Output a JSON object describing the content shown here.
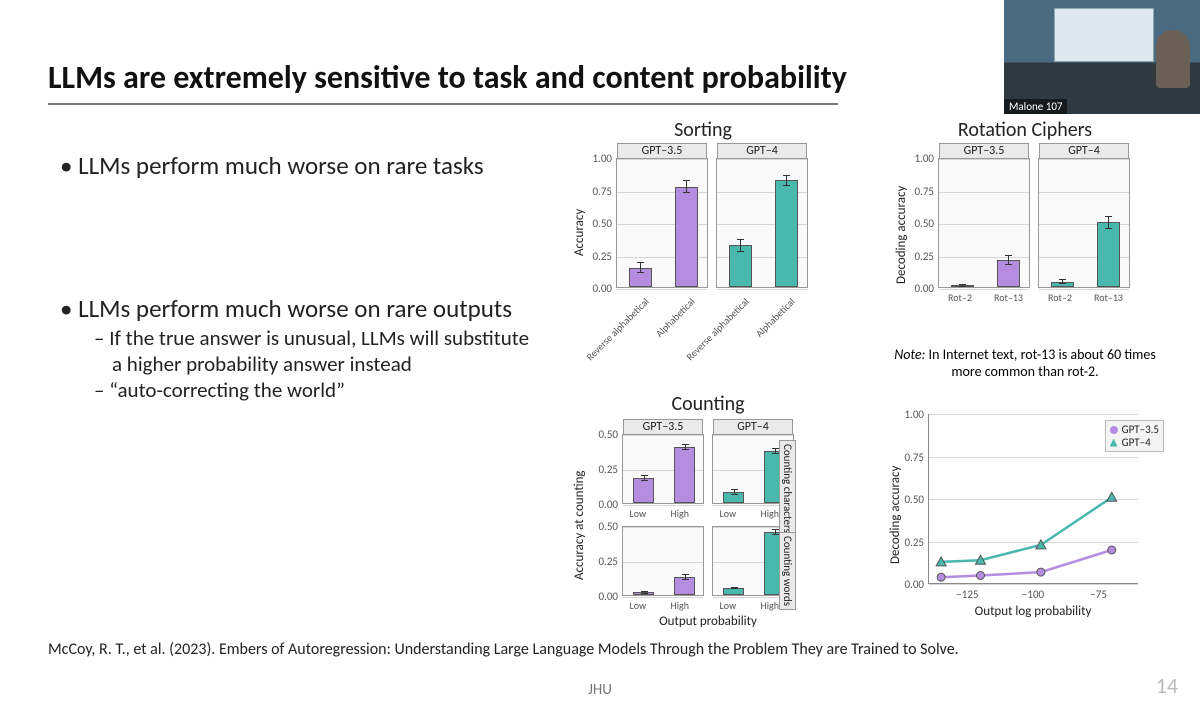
{
  "title": "LLMs are extremely sensitive to task and content probability",
  "bullets": {
    "b1a": "LLMs perform much worse on rare tasks",
    "b1b": "LLMs perform much worse on rare outputs",
    "b2a": "If the true answer is unusual, LLMs will substitute a higher probability answer instead",
    "b2b": "“auto-correcting the world”"
  },
  "citation": "McCoy, R. T., et al. (2023). Embers of Autoregression: Understanding Large Language Models Through the Problem They are Trained to Solve.",
  "footer_center": "JHU",
  "page_number": "14",
  "video_label": "Malone 107",
  "colors": {
    "purple": "#b48de0",
    "teal": "#49b8ad",
    "grid": "#d6d6d6",
    "axis": "#888888",
    "panel_bg": "#fafafa"
  },
  "sorting": {
    "title": "Sorting",
    "ylabel": "Accuracy",
    "ylim": [
      0,
      1
    ],
    "yticks": [
      0.0,
      0.25,
      0.5,
      0.75,
      1.0
    ],
    "panels": [
      {
        "label": "GPT–3.5",
        "color": "#b48de0",
        "bars": [
          {
            "cat": "Reverse alphabetical",
            "val": 0.15,
            "err": 0.04
          },
          {
            "cat": "Alphabetical",
            "val": 0.77,
            "err": 0.05
          }
        ]
      },
      {
        "label": "GPT–4",
        "color": "#49b8ad",
        "bars": [
          {
            "cat": "Reverse alphabetical",
            "val": 0.32,
            "err": 0.05
          },
          {
            "cat": "Alphabetical",
            "val": 0.82,
            "err": 0.04
          }
        ]
      }
    ]
  },
  "rotation": {
    "title": "Rotation Ciphers",
    "ylabel": "Decoding accuracy",
    "ylim": [
      0,
      1
    ],
    "yticks": [
      0.0,
      0.25,
      0.5,
      0.75,
      1.0
    ],
    "panels": [
      {
        "label": "GPT–3.5",
        "color": "#b48de0",
        "bars": [
          {
            "cat": "Rot–2",
            "val": 0.01,
            "err": 0.01
          },
          {
            "cat": "Rot–13",
            "val": 0.21,
            "err": 0.04
          }
        ]
      },
      {
        "label": "GPT–4",
        "color": "#49b8ad",
        "bars": [
          {
            "cat": "Rot–2",
            "val": 0.04,
            "err": 0.02
          },
          {
            "cat": "Rot–13",
            "val": 0.5,
            "err": 0.05
          }
        ]
      }
    ],
    "note_prefix": "Note:",
    "note": " In Internet text, rot-13 is about 60 times more common than rot-2."
  },
  "counting": {
    "title": "Counting",
    "ylabel": "Accuracy at counting",
    "xlabel": "Output probability",
    "ylim": [
      0,
      0.5
    ],
    "yticks": [
      0.0,
      0.25,
      0.5
    ],
    "cols": [
      {
        "label": "GPT–3.5",
        "color": "#b48de0"
      },
      {
        "label": "GPT–4",
        "color": "#49b8ad"
      }
    ],
    "rows": [
      {
        "label": "Counting characters"
      },
      {
        "label": "Counting words"
      }
    ],
    "data": [
      [
        [
          {
            "cat": "Low",
            "val": 0.18,
            "err": 0.02
          },
          {
            "cat": "High",
            "val": 0.4,
            "err": 0.02
          }
        ],
        [
          {
            "cat": "Low",
            "val": 0.08,
            "err": 0.02
          },
          {
            "cat": "High",
            "val": 0.37,
            "err": 0.02
          }
        ]
      ],
      [
        [
          {
            "cat": "Low",
            "val": 0.02,
            "err": 0.01
          },
          {
            "cat": "High",
            "val": 0.13,
            "err": 0.02
          }
        ],
        [
          {
            "cat": "Low",
            "val": 0.05,
            "err": 0.01
          },
          {
            "cat": "High",
            "val": 0.45,
            "err": 0.02
          }
        ]
      ]
    ]
  },
  "linechart": {
    "ylabel": "Decoding accuracy",
    "xlabel": "Output log probability",
    "ylim": [
      0,
      1
    ],
    "yticks": [
      0.0,
      0.25,
      0.5,
      0.75,
      1.0
    ],
    "xlim": [
      -140,
      -60
    ],
    "xticks": [
      -125,
      -100,
      -75
    ],
    "series": [
      {
        "name": "GPT–3.5",
        "color": "#b48de0",
        "marker": "circle",
        "points": [
          [
            -135,
            0.04
          ],
          [
            -120,
            0.05
          ],
          [
            -97,
            0.07
          ],
          [
            -70,
            0.2
          ]
        ]
      },
      {
        "name": "GPT–4",
        "color": "#49b8ad",
        "marker": "triangle",
        "points": [
          [
            -135,
            0.13
          ],
          [
            -120,
            0.14
          ],
          [
            -97,
            0.23
          ],
          [
            -70,
            0.51
          ]
        ]
      }
    ]
  }
}
